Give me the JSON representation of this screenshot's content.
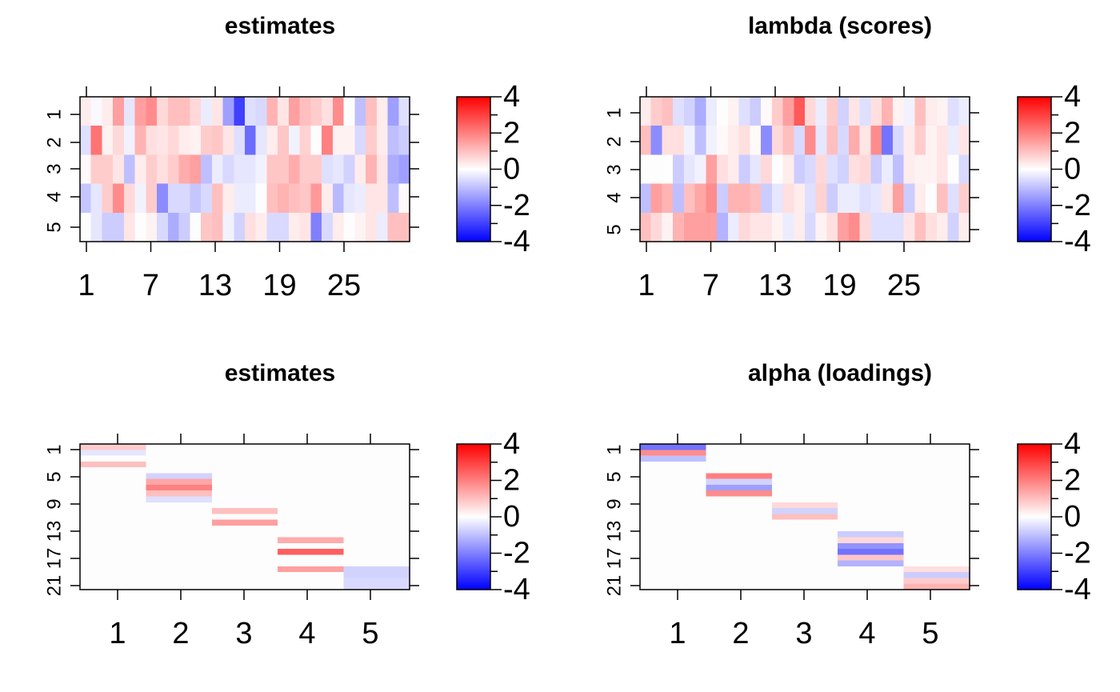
{
  "chart_data": [
    {
      "type": "heatmap",
      "title": "estimates",
      "x_tick_labels": [
        "1",
        "7",
        "13",
        "19",
        "25"
      ],
      "y_tick_labels": [
        "1",
        "2",
        "3",
        "4",
        "5"
      ],
      "color_scale": {
        "low": "#0000ff",
        "mid": "#ffffff",
        "high": "#ff0000",
        "range": [
          -4,
          4
        ],
        "tick_labels": [
          "4",
          "2",
          "0",
          "-2",
          "-4"
        ]
      },
      "rows": 5,
      "cols": 30,
      "values": [
        [
          0.3,
          -0.1,
          0.3,
          1.5,
          -0.4,
          1.5,
          1.8,
          0.6,
          1.0,
          1.0,
          0.6,
          -0.3,
          0.4,
          -1.5,
          -3.0,
          -0.5,
          -0.6,
          1.2,
          0.4,
          1.5,
          1.0,
          0.8,
          0.5,
          1.8,
          0.0,
          -1.0,
          1.0,
          0.3,
          -1.5,
          -0.5
        ],
        [
          -0.5,
          2.2,
          0.2,
          0.6,
          -0.2,
          1.2,
          0.5,
          0.4,
          0.6,
          0.3,
          0.2,
          0.8,
          0.9,
          0.4,
          -0.5,
          -2.3,
          -0.4,
          0.3,
          0.9,
          -0.2,
          0.7,
          0.0,
          2.0,
          0.2,
          0.2,
          -0.6,
          0.8,
          0.3,
          -1.0,
          -0.8
        ],
        [
          0.1,
          0.8,
          0.8,
          0.4,
          -1.0,
          0.3,
          0.8,
          0.5,
          0.8,
          1.3,
          1.5,
          -1.0,
          -0.3,
          -0.6,
          -0.4,
          -0.4,
          -0.2,
          0.9,
          0.9,
          1.3,
          0.8,
          0.8,
          -0.5,
          -0.4,
          -0.7,
          0.3,
          1.2,
          0.4,
          -1.3,
          -1.5
        ],
        [
          -0.9,
          -0.4,
          0.8,
          1.8,
          0.6,
          -0.2,
          0.8,
          -1.8,
          -0.6,
          -0.6,
          -0.9,
          -0.6,
          1.0,
          0.3,
          -0.3,
          -0.3,
          0.0,
          1.0,
          1.2,
          1.0,
          0.9,
          1.6,
          0.3,
          -1.1,
          -0.4,
          -0.3,
          0.4,
          0.4,
          -1.0,
          0.1
        ],
        [
          0.0,
          -0.4,
          -0.8,
          -0.8,
          0.4,
          0.0,
          0.2,
          -0.6,
          -1.3,
          -0.8,
          0.0,
          0.9,
          1.0,
          -0.2,
          -0.7,
          0.5,
          0.3,
          -0.6,
          -0.6,
          0.3,
          0.4,
          -2.0,
          -0.6,
          0.3,
          0.0,
          0.2,
          0.4,
          -0.3,
          1.0,
          1.0
        ]
      ]
    },
    {
      "type": "heatmap",
      "title": "lambda (scores)",
      "x_tick_labels": [
        "1",
        "7",
        "13",
        "19",
        "25"
      ],
      "y_tick_labels": [
        "1",
        "2",
        "3",
        "4",
        "5"
      ],
      "color_scale": {
        "low": "#0000ff",
        "mid": "#ffffff",
        "high": "#ff0000",
        "range": [
          -4,
          4
        ],
        "tick_labels": [
          "4",
          "2",
          "0",
          "-2",
          "-4"
        ]
      },
      "rows": 5,
      "cols": 30,
      "values": [
        [
          0.3,
          0.8,
          1.0,
          -0.5,
          -0.7,
          -1.3,
          -0.3,
          0.0,
          0.2,
          -0.5,
          -0.8,
          0.1,
          0.8,
          1.5,
          2.6,
          0.6,
          -0.3,
          0.8,
          -0.7,
          0.4,
          -0.5,
          0.5,
          1.2,
          0.2,
          -0.2,
          1.0,
          0.3,
          0.2,
          -0.5,
          -0.3
        ],
        [
          1.0,
          -1.8,
          0.5,
          0.5,
          -0.2,
          -1.0,
          -0.2,
          0.1,
          0.3,
          0.5,
          0.1,
          -1.8,
          0.6,
          1.0,
          -0.6,
          1.8,
          -0.4,
          1.0,
          -0.6,
          1.3,
          0.4,
          1.8,
          -2.2,
          -0.6,
          0.3,
          0.8,
          0.2,
          0.4,
          -0.3,
          0.4
        ],
        [
          0.0,
          0.0,
          0.0,
          -0.8,
          -0.4,
          -0.2,
          1.5,
          0.5,
          0.3,
          -0.8,
          -0.4,
          0.6,
          0.0,
          0.3,
          -0.8,
          -0.6,
          0.6,
          -0.5,
          -0.7,
          0.5,
          0.6,
          -0.8,
          -0.3,
          -1.0,
          0.3,
          0.2,
          0.2,
          0.4,
          0.0,
          -0.6
        ],
        [
          -1.0,
          1.5,
          1.2,
          -1.0,
          1.0,
          1.4,
          1.8,
          -0.8,
          1.2,
          1.2,
          1.0,
          -0.8,
          -0.4,
          0.5,
          0.3,
          -0.5,
          0.7,
          -0.8,
          -0.3,
          -0.3,
          -0.5,
          -0.4,
          0.4,
          1.5,
          -0.8,
          0.3,
          0.0,
          1.0,
          -0.5,
          0.8
        ],
        [
          1.0,
          0.6,
          0.2,
          1.2,
          1.5,
          1.5,
          1.5,
          -1.2,
          -0.3,
          0.6,
          0.4,
          0.4,
          0.2,
          -0.3,
          0.3,
          -0.6,
          0.2,
          0.5,
          1.5,
          1.8,
          0.6,
          -0.5,
          -0.5,
          -0.5,
          0.4,
          1.0,
          0.5,
          0.3,
          -0.7,
          0.3
        ]
      ]
    },
    {
      "type": "heatmap",
      "title": "estimates",
      "x_tick_labels": [
        "1",
        "2",
        "3",
        "4",
        "5"
      ],
      "y_tick_labels": [
        "1",
        "5",
        "9",
        "13",
        "17",
        "21"
      ],
      "color_scale": {
        "low": "#0000ff",
        "mid": "#ffffff",
        "high": "#ff0000",
        "range": [
          -4,
          4
        ],
        "tick_labels": [
          "4",
          "2",
          "0",
          "-2",
          "-4"
        ]
      },
      "rows": 25,
      "cols": 5,
      "values": [
        [
          0.8,
          0,
          0,
          0,
          0
        ],
        [
          -0.4,
          0,
          0,
          0,
          0
        ],
        [
          0.0,
          0,
          0,
          0,
          0
        ],
        [
          1.0,
          0,
          0,
          0,
          0
        ],
        [
          0,
          0,
          0,
          0,
          0
        ],
        [
          0,
          -0.7,
          0,
          0,
          0
        ],
        [
          0,
          1.4,
          0,
          0,
          0
        ],
        [
          0,
          2.0,
          0,
          0,
          0
        ],
        [
          0,
          1.0,
          0,
          0,
          0
        ],
        [
          0,
          -0.5,
          0,
          0,
          0
        ],
        [
          0,
          0,
          0,
          0,
          0
        ],
        [
          0,
          0,
          1.0,
          0,
          0
        ],
        [
          0,
          0,
          0.0,
          0,
          0
        ],
        [
          0,
          0,
          1.5,
          0,
          0
        ],
        [
          0,
          0,
          0,
          0,
          0
        ],
        [
          0,
          0,
          0,
          0,
          0
        ],
        [
          0,
          0,
          0,
          1.3,
          0
        ],
        [
          0,
          0,
          0,
          0.0,
          0
        ],
        [
          0,
          0,
          0,
          2.5,
          0
        ],
        [
          0,
          0,
          0,
          0.0,
          0
        ],
        [
          0,
          0,
          0,
          0,
          0
        ],
        [
          0,
          0,
          0,
          1.5,
          -0.7
        ],
        [
          0,
          0,
          0,
          0,
          -0.7
        ],
        [
          0,
          0,
          0,
          0,
          -0.6
        ],
        [
          0,
          0,
          0,
          0,
          -0.6
        ]
      ]
    },
    {
      "type": "heatmap",
      "title": "alpha (loadings)",
      "x_tick_labels": [
        "1",
        "2",
        "3",
        "4",
        "5"
      ],
      "y_tick_labels": [
        "1",
        "5",
        "9",
        "13",
        "17",
        "21"
      ],
      "color_scale": {
        "low": "#0000ff",
        "mid": "#ffffff",
        "high": "#ff0000",
        "range": [
          -4,
          4
        ],
        "tick_labels": [
          "4",
          "2",
          "0",
          "-2",
          "-4"
        ]
      },
      "rows": 25,
      "cols": 5,
      "values": [
        [
          -2.2,
          0,
          0,
          0,
          0
        ],
        [
          1.8,
          0,
          0,
          0,
          0
        ],
        [
          -1.0,
          0,
          0,
          0,
          0
        ],
        [
          0,
          0,
          0,
          0,
          0
        ],
        [
          0,
          0,
          0,
          0,
          0
        ],
        [
          0,
          2.0,
          0,
          0,
          0
        ],
        [
          0,
          -0.7,
          0,
          0,
          0
        ],
        [
          0,
          -1.5,
          0,
          0,
          0
        ],
        [
          0,
          1.8,
          0,
          0,
          0
        ],
        [
          0,
          0,
          0,
          0,
          0
        ],
        [
          0,
          0,
          0.6,
          0,
          0
        ],
        [
          0,
          0,
          -0.7,
          0,
          0
        ],
        [
          0,
          0,
          1.0,
          0,
          0
        ],
        [
          0,
          0,
          0,
          0,
          0
        ],
        [
          0,
          0,
          0,
          0,
          0
        ],
        [
          0,
          0,
          0,
          -0.8,
          0
        ],
        [
          0,
          0,
          0,
          0.6,
          0
        ],
        [
          0,
          0,
          0,
          -1.7,
          0
        ],
        [
          0,
          0,
          0,
          -2.2,
          0
        ],
        [
          0,
          0,
          0,
          0.9,
          0
        ],
        [
          0,
          0,
          0,
          -1.2,
          0
        ],
        [
          0,
          0,
          0,
          0,
          0.5
        ],
        [
          0,
          0,
          0,
          0,
          -0.8
        ],
        [
          0,
          0,
          0,
          0,
          0.8
        ],
        [
          0,
          0,
          0,
          0,
          1.2
        ]
      ]
    }
  ]
}
